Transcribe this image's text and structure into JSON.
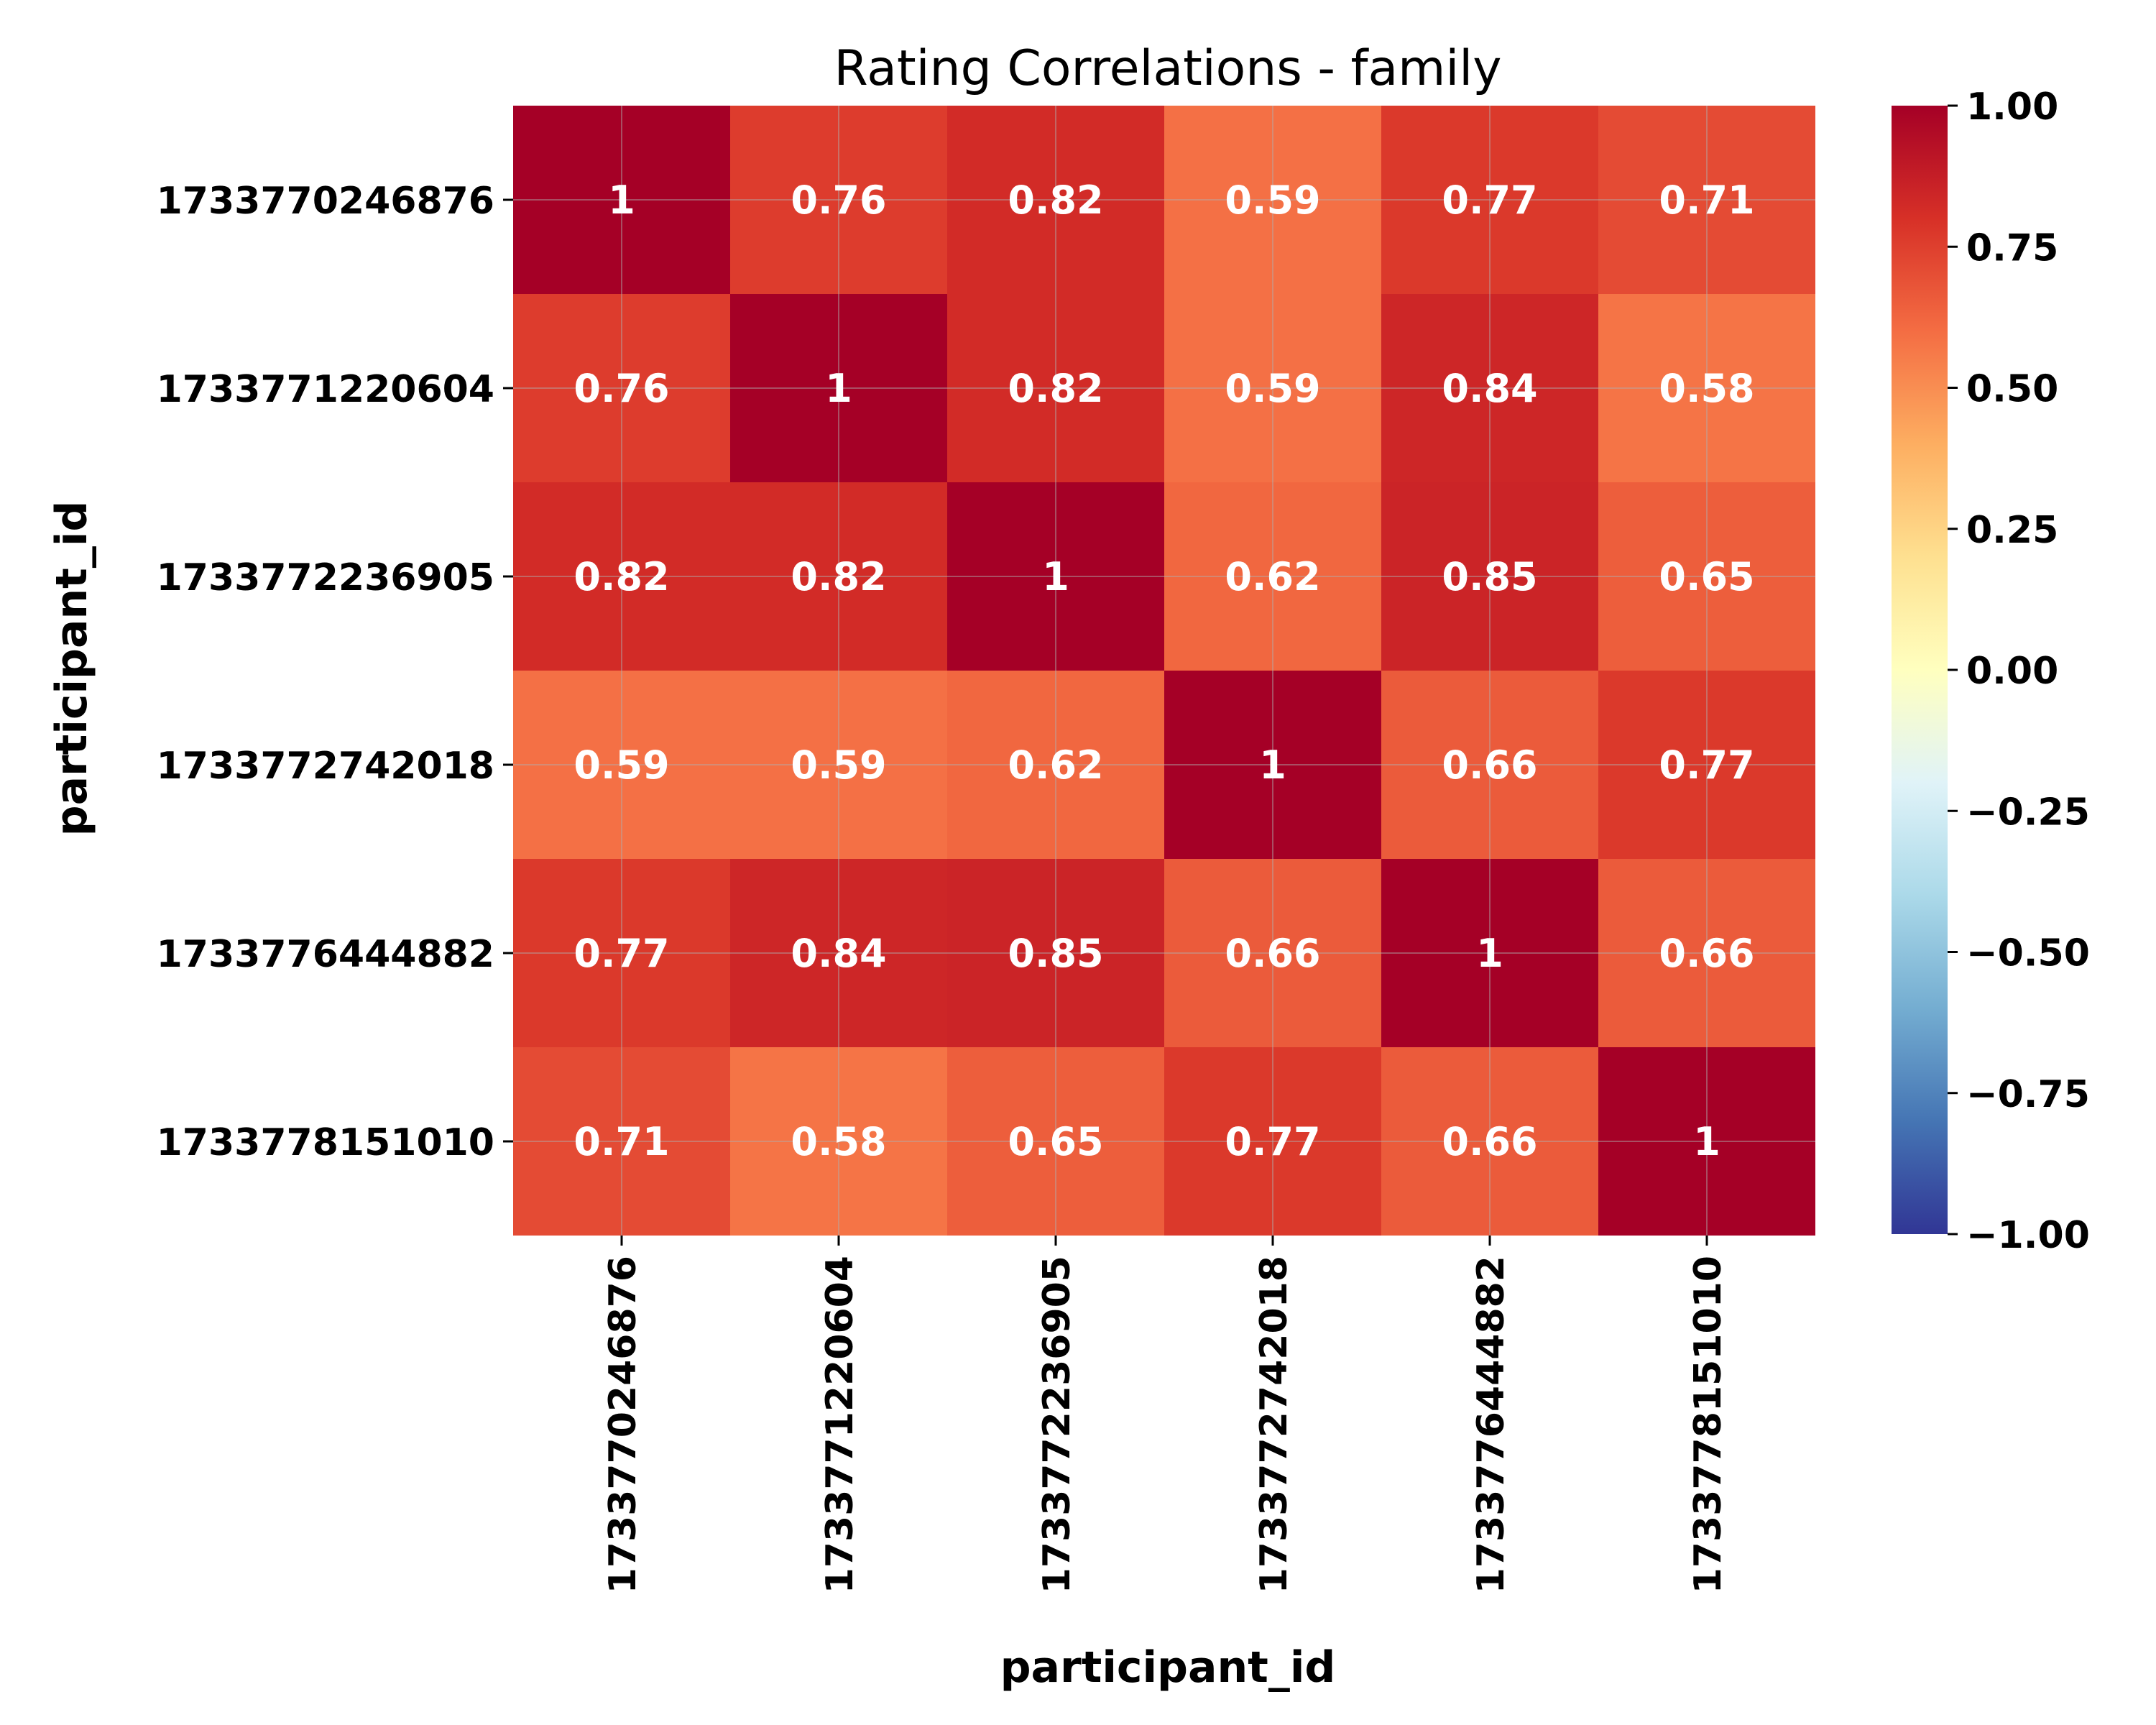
{
  "chart_data": {
    "type": "heatmap",
    "title": "Rating Correlations - family",
    "xlabel": "participant_id",
    "ylabel": "participant_id",
    "x_categories": [
      "1733770246876",
      "1733771220604",
      "1733772236905",
      "1733772742018",
      "1733776444882",
      "1733778151010"
    ],
    "y_categories": [
      "1733770246876",
      "1733771220604",
      "1733772236905",
      "1733772742018",
      "1733776444882",
      "1733778151010"
    ],
    "values": [
      [
        1,
        0.76,
        0.82,
        0.59,
        0.77,
        0.71
      ],
      [
        0.76,
        1,
        0.82,
        0.59,
        0.84,
        0.58
      ],
      [
        0.82,
        0.82,
        1,
        0.62,
        0.85,
        0.65
      ],
      [
        0.59,
        0.59,
        0.62,
        1,
        0.66,
        0.77
      ],
      [
        0.77,
        0.84,
        0.85,
        0.66,
        1,
        0.66
      ],
      [
        0.71,
        0.58,
        0.65,
        0.77,
        0.66,
        1
      ]
    ],
    "value_labels": [
      [
        "1",
        "0.76",
        "0.82",
        "0.59",
        "0.77",
        "0.71"
      ],
      [
        "0.76",
        "1",
        "0.82",
        "0.59",
        "0.84",
        "0.58"
      ],
      [
        "0.82",
        "0.82",
        "1",
        "0.62",
        "0.85",
        "0.65"
      ],
      [
        "0.59",
        "0.59",
        "0.62",
        "1",
        "0.66",
        "0.77"
      ],
      [
        "0.77",
        "0.84",
        "0.85",
        "0.66",
        "1",
        "0.66"
      ],
      [
        "0.71",
        "0.58",
        "0.65",
        "0.77",
        "0.66",
        "1"
      ]
    ],
    "colorbar": {
      "colormap": "RdYlBu_r",
      "vmin": -1,
      "vmax": 1,
      "ticks": [
        1,
        0.75,
        0.5,
        0.25,
        0,
        -0.25,
        -0.5,
        -0.75,
        -1
      ],
      "tick_labels": [
        "1.00",
        "0.75",
        "0.50",
        "0.25",
        "0.00",
        "−0.25",
        "−0.50",
        "−0.75",
        "−1.00"
      ]
    },
    "grid": true
  }
}
